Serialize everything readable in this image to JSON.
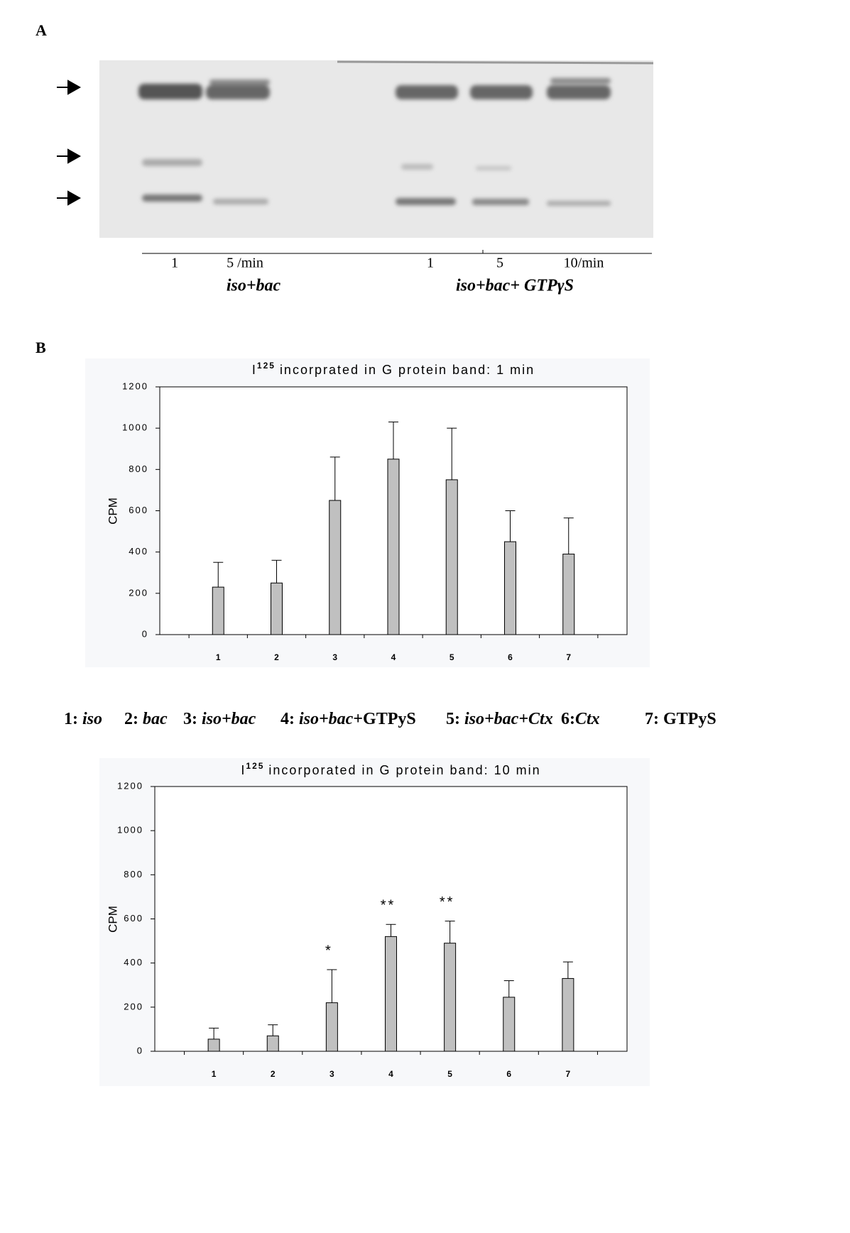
{
  "panel_a": {
    "label": "A",
    "lanes": [
      "1",
      "5 /min",
      "1",
      "5",
      "10/min"
    ],
    "groups": [
      "iso+bac",
      "iso+bac+ GTPγS"
    ]
  },
  "panel_b": {
    "label": "B",
    "legend": [
      {
        "key": "1:",
        "parts": [
          {
            "text": "iso",
            "italic": true
          }
        ]
      },
      {
        "key": "2:",
        "parts": [
          {
            "text": "bac",
            "italic": true
          }
        ]
      },
      {
        "key": "3:",
        "parts": [
          {
            "text": "iso+bac",
            "italic": true
          }
        ]
      },
      {
        "key": "4:",
        "parts": [
          {
            "text": "iso+bac",
            "italic": true
          },
          {
            "text": "+GTPyS",
            "italic": false
          }
        ]
      },
      {
        "key": "5:",
        "parts": [
          {
            "text": "iso+bac+Ctx",
            "italic": true
          }
        ]
      },
      {
        "key": "6:",
        "parts": [
          {
            "text": "Ctx",
            "italic": true
          }
        ]
      },
      {
        "key": "7:",
        "parts": [
          {
            "text": "GTPyS",
            "italic": false
          }
        ]
      }
    ]
  },
  "chart_data": [
    {
      "type": "bar",
      "title": {
        "main": "I",
        "superscript": "125",
        "text": "incorprated in G protein band: 1 min"
      },
      "ylabel": "CPM",
      "categories": [
        "1",
        "2",
        "3",
        "4",
        "5",
        "6",
        "7"
      ],
      "values": [
        230,
        250,
        650,
        850,
        750,
        450,
        390
      ],
      "errors": [
        120,
        110,
        210,
        180,
        250,
        150,
        175
      ],
      "color": "#c0c0c0",
      "ylim": [
        0,
        1200
      ],
      "yticks": [
        0,
        200,
        400,
        600,
        800,
        1000,
        1200
      ]
    },
    {
      "type": "bar",
      "title": {
        "main": "I",
        "superscript": "125",
        "text": "incorporated in G protein band: 10 min"
      },
      "ylabel": "CPM",
      "categories": [
        "1",
        "2",
        "3",
        "4",
        "5",
        "6",
        "7"
      ],
      "values": [
        55,
        70,
        220,
        520,
        490,
        245,
        330
      ],
      "errors": [
        50,
        50,
        150,
        55,
        100,
        75,
        75
      ],
      "annotations": [
        null,
        null,
        "*",
        "**",
        "**",
        null,
        null
      ],
      "color": "#c0c0c0",
      "ylim": [
        0,
        1200
      ],
      "yticks": [
        0,
        200,
        400,
        600,
        800,
        1000,
        1200
      ]
    }
  ]
}
